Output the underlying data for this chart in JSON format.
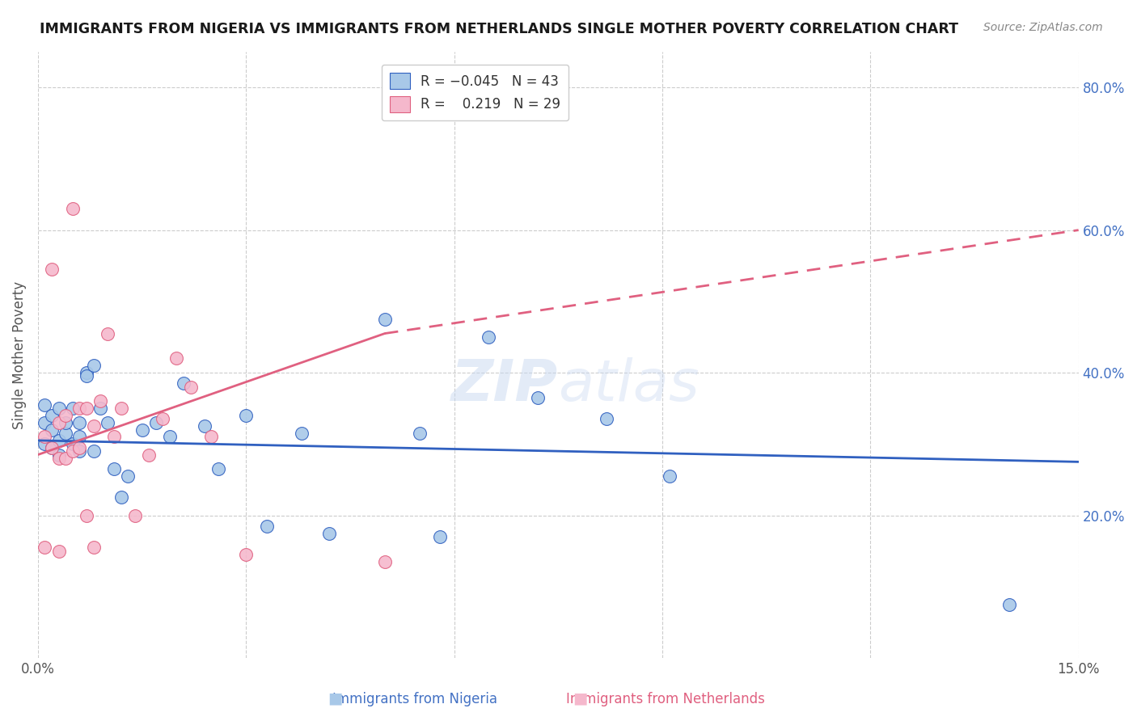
{
  "title": "IMMIGRANTS FROM NIGERIA VS IMMIGRANTS FROM NETHERLANDS SINGLE MOTHER POVERTY CORRELATION CHART",
  "source": "Source: ZipAtlas.com",
  "xlabel_nigeria": "Immigrants from Nigeria",
  "xlabel_netherlands": "Immigrants from Netherlands",
  "ylabel": "Single Mother Poverty",
  "xlim": [
    0.0,
    0.15
  ],
  "ylim": [
    0.0,
    0.85
  ],
  "ytick_vals_right": [
    0.2,
    0.4,
    0.6,
    0.8
  ],
  "ytick_labels_right": [
    "20.0%",
    "40.0%",
    "60.0%",
    "80.0%"
  ],
  "nigeria_color": "#a8c8e8",
  "netherlands_color": "#f5b8cc",
  "nigeria_line_color": "#3060c0",
  "netherlands_line_color": "#e06080",
  "nigeria_x": [
    0.001,
    0.001,
    0.001,
    0.002,
    0.002,
    0.002,
    0.003,
    0.003,
    0.003,
    0.004,
    0.004,
    0.005,
    0.005,
    0.006,
    0.006,
    0.006,
    0.007,
    0.007,
    0.008,
    0.008,
    0.009,
    0.01,
    0.011,
    0.012,
    0.013,
    0.015,
    0.017,
    0.019,
    0.021,
    0.024,
    0.026,
    0.03,
    0.033,
    0.038,
    0.042,
    0.05,
    0.055,
    0.058,
    0.065,
    0.072,
    0.082,
    0.091,
    0.14
  ],
  "nigeria_y": [
    0.33,
    0.355,
    0.3,
    0.32,
    0.295,
    0.34,
    0.305,
    0.35,
    0.285,
    0.315,
    0.33,
    0.3,
    0.35,
    0.29,
    0.33,
    0.31,
    0.4,
    0.395,
    0.41,
    0.29,
    0.35,
    0.33,
    0.265,
    0.225,
    0.255,
    0.32,
    0.33,
    0.31,
    0.385,
    0.325,
    0.265,
    0.34,
    0.185,
    0.315,
    0.175,
    0.475,
    0.315,
    0.17,
    0.45,
    0.365,
    0.335,
    0.255,
    0.075
  ],
  "netherlands_x": [
    0.001,
    0.001,
    0.002,
    0.002,
    0.003,
    0.003,
    0.003,
    0.004,
    0.004,
    0.005,
    0.005,
    0.006,
    0.006,
    0.007,
    0.007,
    0.008,
    0.008,
    0.009,
    0.01,
    0.011,
    0.012,
    0.014,
    0.016,
    0.018,
    0.02,
    0.022,
    0.025,
    0.03,
    0.05
  ],
  "netherlands_y": [
    0.31,
    0.155,
    0.295,
    0.545,
    0.33,
    0.28,
    0.15,
    0.28,
    0.34,
    0.63,
    0.29,
    0.35,
    0.295,
    0.35,
    0.2,
    0.155,
    0.325,
    0.36,
    0.455,
    0.31,
    0.35,
    0.2,
    0.285,
    0.335,
    0.42,
    0.38,
    0.31,
    0.145,
    0.135
  ],
  "nigeria_line_y0": 0.305,
  "nigeria_line_y1": 0.275,
  "netherlands_line_y0": 0.285,
  "netherlands_line_y1": 0.6
}
